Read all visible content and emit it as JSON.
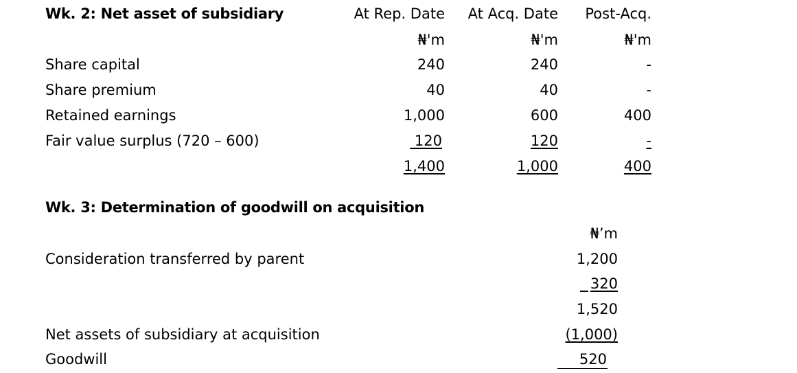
{
  "wk2": {
    "title": "Wk. 2: Net asset of subsidiary",
    "columns": [
      "At Rep. Date",
      "At Acq. Date",
      "Post-Acq."
    ],
    "units": [
      "₦'m",
      "₦'m",
      "₦'m"
    ],
    "rows": [
      {
        "label": "Share capital",
        "values": [
          "240",
          "240",
          "-"
        ]
      },
      {
        "label": "Share premium",
        "values": [
          "40",
          "40",
          "-"
        ]
      },
      {
        "label": "Retained earnings",
        "values": [
          "1,000",
          "600",
          "400"
        ]
      },
      {
        "label": "Fair value surplus (720 – 600)",
        "values": [
          " 120",
          "120",
          "-"
        ]
      }
    ],
    "totals": [
      "1,400",
      "1,000",
      "400"
    ]
  },
  "wk3": {
    "title": "Wk. 3: Determination of goodwill on acquisition",
    "unit": "₦’m",
    "rows": [
      {
        "label": "Consideration transferred by parent",
        "value": "1,200"
      },
      {
        "label": "",
        "value": "320"
      },
      {
        "label": "",
        "value": "1,520"
      },
      {
        "label": "Net assets of subsidiary at acquisition",
        "value": "(1,000)"
      },
      {
        "label": "Goodwill",
        "value": "520"
      }
    ]
  }
}
